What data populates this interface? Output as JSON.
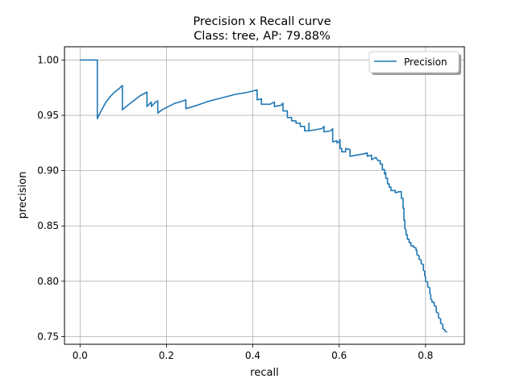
{
  "chart_data": {
    "type": "line",
    "title": "Precision x Recall curve",
    "subtitle": "Class: tree, AP: 79.88%",
    "xlabel": "recall",
    "ylabel": "precision",
    "xlim": [
      -0.036,
      0.89
    ],
    "ylim": [
      0.743,
      1.012
    ],
    "x_ticks": [
      0.0,
      0.2,
      0.4,
      0.6,
      0.8
    ],
    "x_tick_labels": [
      "0.0",
      "0.2",
      "0.4",
      "0.6",
      "0.8"
    ],
    "y_ticks": [
      0.75,
      0.8,
      0.85,
      0.9,
      0.95,
      1.0
    ],
    "y_tick_labels": [
      "0.75",
      "0.80",
      "0.85",
      "0.90",
      "0.95",
      "1.00"
    ],
    "grid": true,
    "legend_position": "top-right",
    "series": [
      {
        "name": "Precision",
        "color": "#1f77b4",
        "points": [
          [
            0.0,
            1.0
          ],
          [
            0.04,
            1.0
          ],
          [
            0.04,
            0.947
          ],
          [
            0.05,
            0.955
          ],
          [
            0.06,
            0.962
          ],
          [
            0.07,
            0.967
          ],
          [
            0.08,
            0.971
          ],
          [
            0.09,
            0.974
          ],
          [
            0.098,
            0.977
          ],
          [
            0.098,
            0.955
          ],
          [
            0.11,
            0.959
          ],
          [
            0.12,
            0.962
          ],
          [
            0.13,
            0.965
          ],
          [
            0.14,
            0.968
          ],
          [
            0.155,
            0.971
          ],
          [
            0.155,
            0.958
          ],
          [
            0.165,
            0.962
          ],
          [
            0.165,
            0.958
          ],
          [
            0.175,
            0.962
          ],
          [
            0.18,
            0.963
          ],
          [
            0.18,
            0.952
          ],
          [
            0.19,
            0.955
          ],
          [
            0.2,
            0.957
          ],
          [
            0.21,
            0.959
          ],
          [
            0.22,
            0.961
          ],
          [
            0.23,
            0.962
          ],
          [
            0.245,
            0.964
          ],
          [
            0.245,
            0.956
          ],
          [
            0.27,
            0.959
          ],
          [
            0.3,
            0.963
          ],
          [
            0.33,
            0.966
          ],
          [
            0.36,
            0.969
          ],
          [
            0.39,
            0.971
          ],
          [
            0.41,
            0.973
          ],
          [
            0.41,
            0.964
          ],
          [
            0.42,
            0.965
          ],
          [
            0.42,
            0.96
          ],
          [
            0.44,
            0.96
          ],
          [
            0.45,
            0.962
          ],
          [
            0.45,
            0.958
          ],
          [
            0.465,
            0.959
          ],
          [
            0.47,
            0.961
          ],
          [
            0.47,
            0.954
          ],
          [
            0.48,
            0.954
          ],
          [
            0.48,
            0.948
          ],
          [
            0.49,
            0.948
          ],
          [
            0.49,
            0.945
          ],
          [
            0.5,
            0.945
          ],
          [
            0.5,
            0.943
          ],
          [
            0.51,
            0.943
          ],
          [
            0.51,
            0.94
          ],
          [
            0.52,
            0.94
          ],
          [
            0.52,
            0.936
          ],
          [
            0.53,
            0.936
          ],
          [
            0.53,
            0.943
          ],
          [
            0.53,
            0.936
          ],
          [
            0.56,
            0.938
          ],
          [
            0.565,
            0.94
          ],
          [
            0.565,
            0.935
          ],
          [
            0.58,
            0.936
          ],
          [
            0.585,
            0.938
          ],
          [
            0.585,
            0.926
          ],
          [
            0.595,
            0.927
          ],
          [
            0.595,
            0.925
          ],
          [
            0.6,
            0.926
          ],
          [
            0.602,
            0.928
          ],
          [
            0.602,
            0.92
          ],
          [
            0.606,
            0.92
          ],
          [
            0.606,
            0.917
          ],
          [
            0.615,
            0.917
          ],
          [
            0.615,
            0.92
          ],
          [
            0.625,
            0.919
          ],
          [
            0.625,
            0.913
          ],
          [
            0.64,
            0.914
          ],
          [
            0.655,
            0.915
          ],
          [
            0.665,
            0.916
          ],
          [
            0.665,
            0.913
          ],
          [
            0.675,
            0.914
          ],
          [
            0.675,
            0.91
          ],
          [
            0.685,
            0.912
          ],
          [
            0.69,
            0.909
          ],
          [
            0.695,
            0.909
          ],
          [
            0.695,
            0.906
          ],
          [
            0.7,
            0.906
          ],
          [
            0.7,
            0.901
          ],
          [
            0.705,
            0.901
          ],
          [
            0.705,
            0.897
          ],
          [
            0.708,
            0.898
          ],
          [
            0.708,
            0.893
          ],
          [
            0.712,
            0.893
          ],
          [
            0.712,
            0.888
          ],
          [
            0.716,
            0.888
          ],
          [
            0.716,
            0.885
          ],
          [
            0.72,
            0.885
          ],
          [
            0.72,
            0.882
          ],
          [
            0.73,
            0.882
          ],
          [
            0.73,
            0.88
          ],
          [
            0.74,
            0.881
          ],
          [
            0.744,
            0.881
          ],
          [
            0.744,
            0.875
          ],
          [
            0.748,
            0.875
          ],
          [
            0.748,
            0.866
          ],
          [
            0.75,
            0.866
          ],
          [
            0.75,
            0.855
          ],
          [
            0.752,
            0.855
          ],
          [
            0.752,
            0.848
          ],
          [
            0.755,
            0.846
          ],
          [
            0.755,
            0.842
          ],
          [
            0.758,
            0.842
          ],
          [
            0.758,
            0.838
          ],
          [
            0.762,
            0.838
          ],
          [
            0.762,
            0.835
          ],
          [
            0.766,
            0.835
          ],
          [
            0.766,
            0.832
          ],
          [
            0.772,
            0.832
          ],
          [
            0.772,
            0.831
          ],
          [
            0.778,
            0.83
          ],
          [
            0.778,
            0.828
          ],
          [
            0.78,
            0.828
          ],
          [
            0.78,
            0.824
          ],
          [
            0.785,
            0.823
          ],
          [
            0.785,
            0.82
          ],
          [
            0.79,
            0.819
          ],
          [
            0.79,
            0.816
          ],
          [
            0.795,
            0.815
          ],
          [
            0.795,
            0.81
          ],
          [
            0.798,
            0.809
          ],
          [
            0.798,
            0.805
          ],
          [
            0.8,
            0.804
          ],
          [
            0.8,
            0.8
          ],
          [
            0.805,
            0.799
          ],
          [
            0.805,
            0.795
          ],
          [
            0.81,
            0.794
          ],
          [
            0.81,
            0.789
          ],
          [
            0.812,
            0.788
          ],
          [
            0.812,
            0.784
          ],
          [
            0.815,
            0.783
          ],
          [
            0.815,
            0.781
          ],
          [
            0.82,
            0.781
          ],
          [
            0.82,
            0.778
          ],
          [
            0.825,
            0.777
          ],
          [
            0.825,
            0.772
          ],
          [
            0.83,
            0.771
          ],
          [
            0.83,
            0.767
          ],
          [
            0.835,
            0.766
          ],
          [
            0.835,
            0.762
          ],
          [
            0.84,
            0.761
          ],
          [
            0.84,
            0.757
          ],
          [
            0.845,
            0.756
          ],
          [
            0.845,
            0.755
          ],
          [
            0.85,
            0.754
          ]
        ]
      }
    ]
  }
}
